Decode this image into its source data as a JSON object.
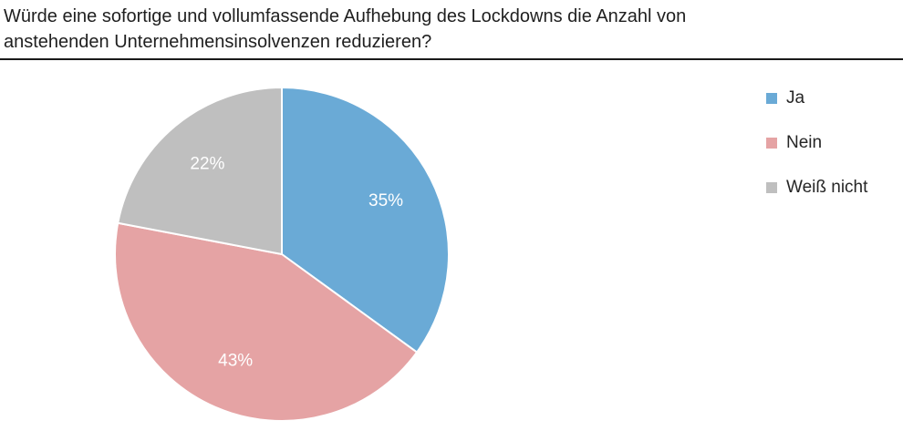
{
  "chart_data": {
    "type": "pie",
    "title_lines": [
      "Würde eine sofortige und vollumfassende Aufhebung des Lockdowns die Anzahl von",
      "anstehenden Unternehmensinsolvenzen reduzieren?"
    ],
    "slices": [
      {
        "label": "Ja",
        "value": 35,
        "value_label": "35%",
        "color": "#6aaad6"
      },
      {
        "label": "Nein",
        "value": 43,
        "value_label": "43%",
        "color": "#e5a3a4"
      },
      {
        "label": "Weiß nicht",
        "value": 22,
        "value_label": "22%",
        "color": "#bfbfbf"
      }
    ],
    "start": "12 o'clock",
    "direction": "clockwise",
    "legend_position": "right"
  }
}
